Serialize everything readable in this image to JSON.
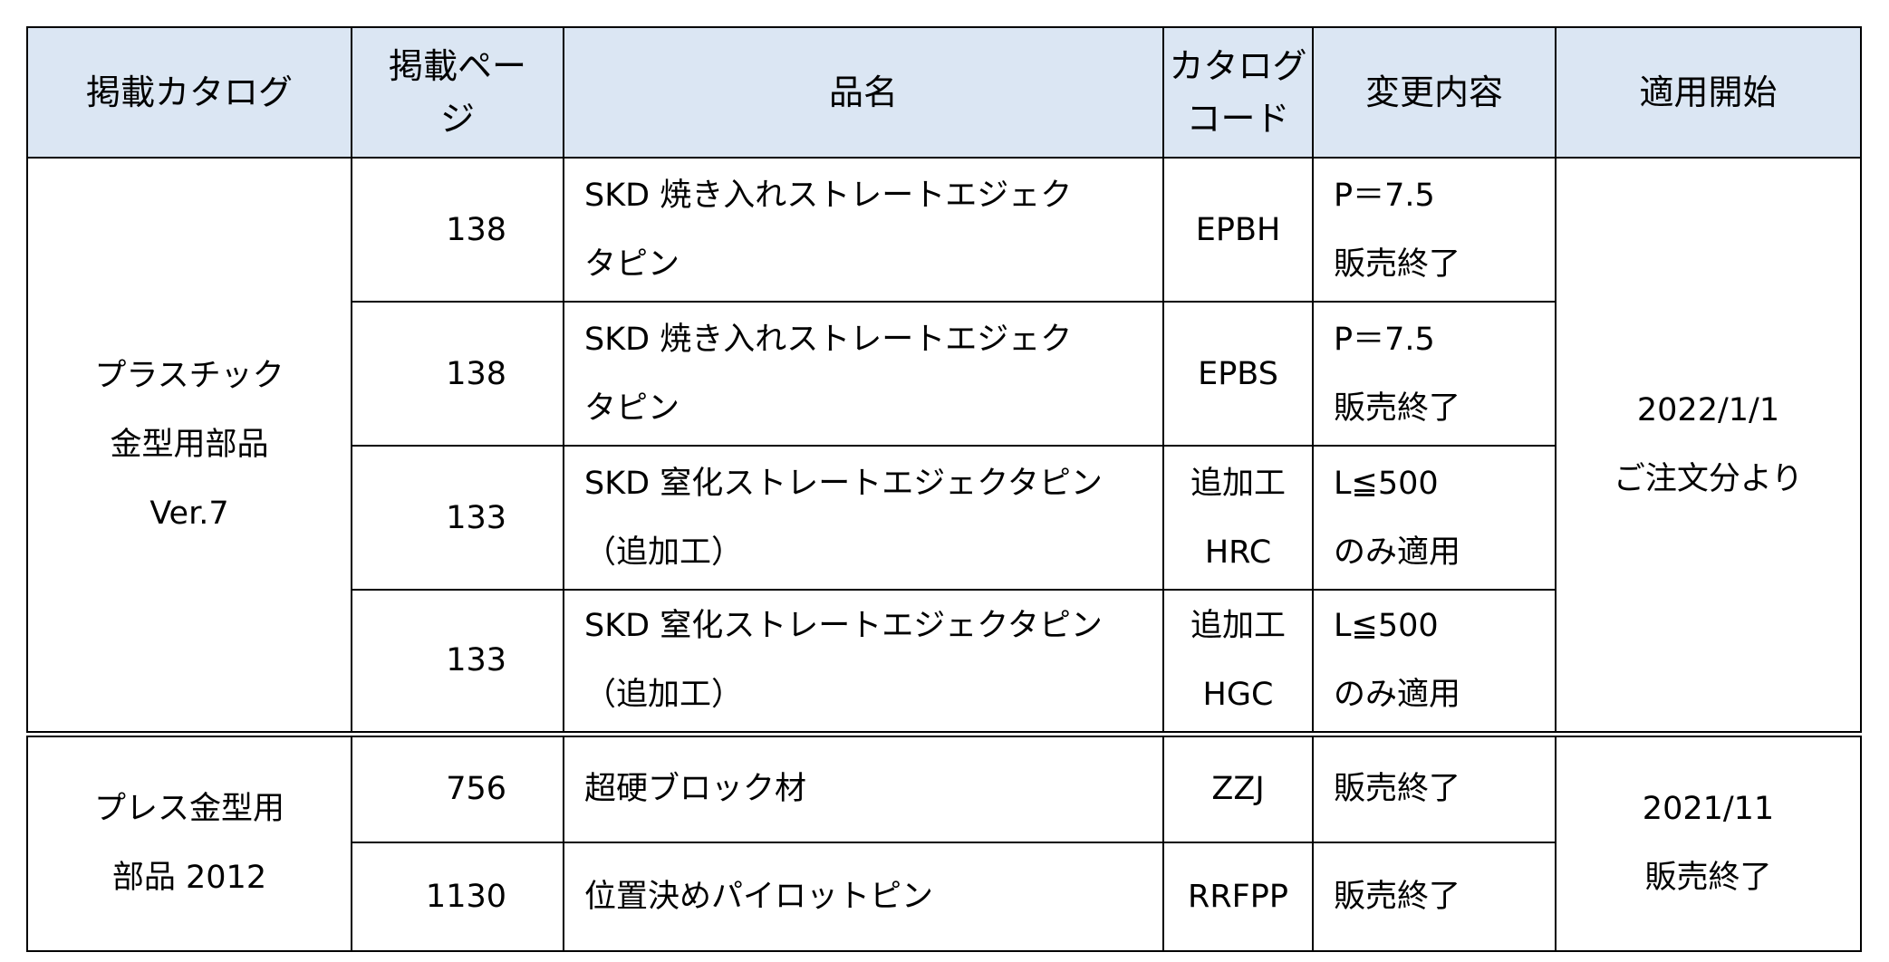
{
  "headers": {
    "catalog": "掲載カタログ",
    "page_line1": "掲載ペー",
    "page_line2": "ジ",
    "name": "品名",
    "code_line1": "カタログ",
    "code_line2": "コード",
    "change": "変更内容",
    "start": "適用開始"
  },
  "groups": [
    {
      "catalog_lines": [
        "プラスチック",
        "金型用部品",
        "Ver.7"
      ],
      "start_lines": [
        "2022/1/1",
        "ご注文分より"
      ],
      "rows": [
        {
          "page": "138",
          "name_lines": [
            "SKD 焼き入れストレートエジェク",
            "タピン"
          ],
          "code_lines": [
            "EPBH"
          ],
          "change_lines": [
            "P＝7.5",
            "販売終了"
          ]
        },
        {
          "page": "138",
          "name_lines": [
            "SKD 焼き入れストレートエジェク",
            "タピン"
          ],
          "code_lines": [
            "EPBS"
          ],
          "change_lines": [
            "P＝7.5",
            "販売終了"
          ]
        },
        {
          "page": "133",
          "name_lines": [
            "SKD 窒化ストレートエジェクタピン",
            "（追加工）"
          ],
          "code_lines": [
            "追加工",
            "HRC"
          ],
          "change_lines": [
            "L≦500",
            "のみ適用"
          ]
        },
        {
          "page": "133",
          "name_lines": [
            "SKD 窒化ストレートエジェクタピン",
            "（追加工）"
          ],
          "code_lines": [
            "追加工",
            "HGC"
          ],
          "change_lines": [
            "L≦500",
            "のみ適用"
          ]
        }
      ]
    },
    {
      "catalog_lines": [
        "プレス金型用",
        "部品 2012"
      ],
      "start_lines": [
        "2021/11",
        "販売終了"
      ],
      "rows": [
        {
          "page": "756",
          "name_lines": [
            "超硬ブロック材"
          ],
          "code_lines": [
            "ZZJ"
          ],
          "change_lines": [
            "販売終了"
          ]
        },
        {
          "page": "1130",
          "name_lines": [
            "位置決めパイロットピン"
          ],
          "code_lines": [
            "RRFPP"
          ],
          "change_lines": [
            "販売終了"
          ]
        }
      ]
    }
  ]
}
